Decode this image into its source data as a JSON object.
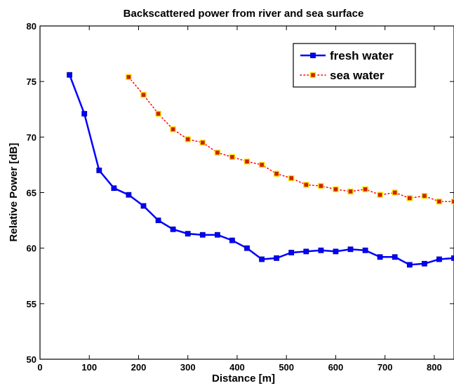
{
  "chart_data": {
    "type": "line",
    "title": "Backscattered power from river and sea surface",
    "xlabel": "Distance [m]",
    "ylabel": "Relative Power [dB]",
    "xlim": [
      0,
      840
    ],
    "ylim": [
      50,
      80
    ],
    "xticks": [
      0,
      100,
      200,
      300,
      400,
      500,
      600,
      700,
      800
    ],
    "yticks": [
      50,
      55,
      60,
      65,
      70,
      75,
      80
    ],
    "grid": false,
    "legend_position": "top-right",
    "series": [
      {
        "name": "fresh water",
        "color": "#0000ff",
        "line_style": "solid",
        "marker": "square",
        "marker_color": "#0000ff",
        "x": [
          60,
          90,
          120,
          150,
          180,
          210,
          240,
          270,
          300,
          330,
          360,
          390,
          420,
          450,
          480,
          510,
          540,
          570,
          600,
          630,
          660,
          690,
          720,
          750,
          780,
          810,
          840
        ],
        "y": [
          75.6,
          72.1,
          67.0,
          65.4,
          64.8,
          63.8,
          62.5,
          61.7,
          61.3,
          61.2,
          61.2,
          60.7,
          60.0,
          59.0,
          59.1,
          59.6,
          59.7,
          59.8,
          59.7,
          59.9,
          59.8,
          59.2,
          59.2,
          58.5,
          58.6,
          59.0,
          59.1
        ]
      },
      {
        "name": "sea water",
        "color": "#ff0000",
        "line_style": "dotted",
        "marker": "square",
        "marker_color": "#cc2200",
        "x": [
          180,
          210,
          240,
          270,
          300,
          330,
          360,
          390,
          420,
          450,
          480,
          510,
          540,
          570,
          600,
          630,
          660,
          690,
          720,
          750,
          780,
          810,
          840
        ],
        "y": [
          75.4,
          73.8,
          72.1,
          70.7,
          69.8,
          69.5,
          68.6,
          68.2,
          67.8,
          67.5,
          66.7,
          66.3,
          65.7,
          65.6,
          65.3,
          65.1,
          65.3,
          64.8,
          65.0,
          64.5,
          64.7,
          64.2,
          64.2
        ]
      }
    ]
  }
}
